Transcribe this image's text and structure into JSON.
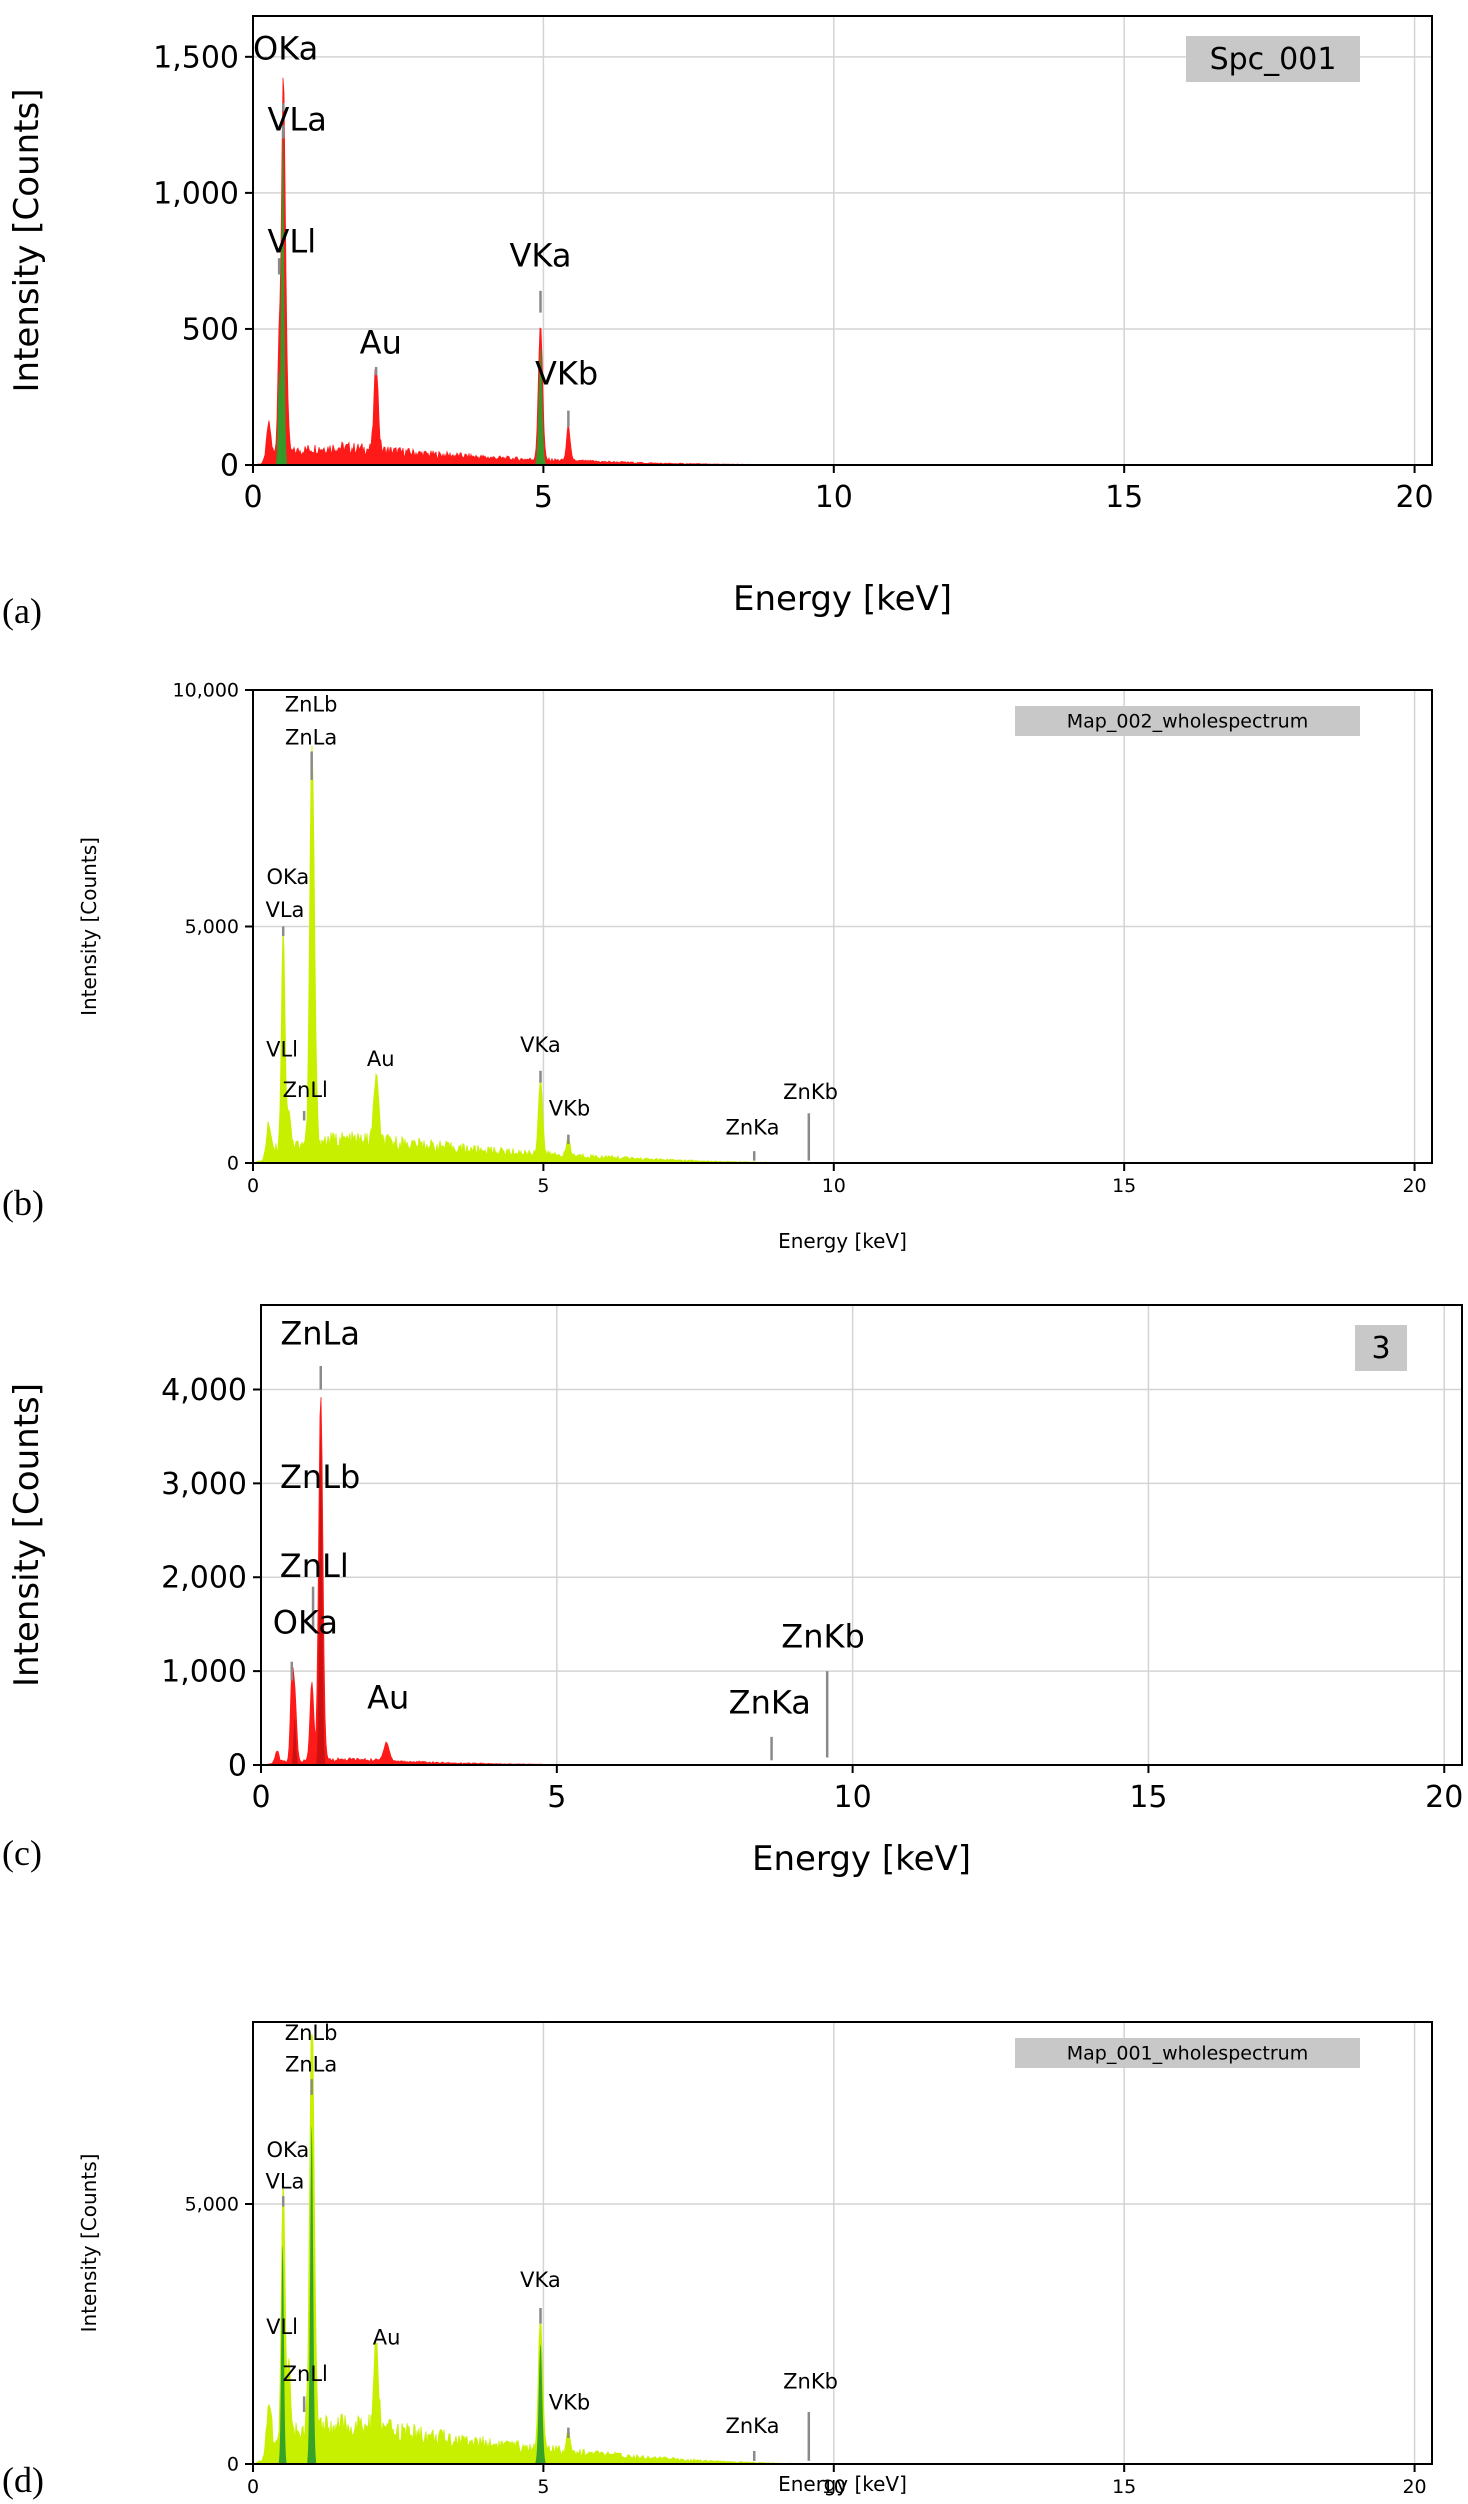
{
  "figure": {
    "panel_labels": [
      "(a)",
      "(b)",
      "(c)",
      "(d)"
    ]
  },
  "colors": {
    "red": "#ff1a1a",
    "red_overlay": "#cc1010",
    "lime": "#c6f000",
    "green_overlay": "#2e9e2a",
    "grid": "#d4d4d4",
    "axis": "#000000",
    "legend_bg": "#c8c8c8",
    "marker": "#8a8a8a"
  },
  "chart_data": [
    {
      "id": "a",
      "type": "area",
      "title": "",
      "xlabel": "Energy [keV]",
      "ylabel": "Intensity [Counts]",
      "xlim": [
        0,
        20.3
      ],
      "ylim": [
        0,
        1650
      ],
      "xticks": [
        0,
        5,
        10,
        15,
        20
      ],
      "yticks": [
        0,
        500,
        1000,
        1500
      ],
      "ytick_labels": [
        "0",
        "500",
        "1,000",
        "1,500"
      ],
      "grid": true,
      "legend": "Spc_001",
      "legend_position": "top-right",
      "fill": "red",
      "overlay": "green_overlay",
      "background": [
        [
          0,
          0
        ],
        [
          0.15,
          5
        ],
        [
          0.3,
          40
        ],
        [
          0.6,
          45
        ],
        [
          1.0,
          60
        ],
        [
          1.5,
          65
        ],
        [
          1.9,
          60
        ],
        [
          2.5,
          50
        ],
        [
          3.0,
          40
        ],
        [
          3.5,
          35
        ],
        [
          4.0,
          28
        ],
        [
          4.6,
          22
        ],
        [
          5.2,
          18
        ],
        [
          6.0,
          12
        ],
        [
          7.0,
          6
        ],
        [
          8.0,
          3
        ],
        [
          9.0,
          1
        ],
        [
          10.0,
          0
        ],
        [
          20.3,
          0
        ]
      ],
      "peaks": [
        [
          0.27,
          120,
          0.035
        ],
        [
          0.45,
          400,
          0.025
        ],
        [
          0.52,
          1300,
          0.03
        ],
        [
          0.57,
          300,
          0.03
        ],
        [
          2.12,
          320,
          0.035
        ],
        [
          4.95,
          500,
          0.035
        ],
        [
          5.43,
          130,
          0.03
        ]
      ],
      "overlay_peaks": [
        [
          0.45,
          350,
          0.02
        ],
        [
          0.51,
          1220,
          0.025
        ],
        [
          4.95,
          430,
          0.03
        ]
      ],
      "annotations": [
        {
          "text": "OKa",
          "x": 0.0,
          "y": 1490,
          "anchor": "start",
          "marker": 0.52,
          "marker_from": 1300,
          "marker_to": 1330
        },
        {
          "text": "VLa",
          "x": 0.25,
          "y": 1230,
          "anchor": "start",
          "marker": 0.52,
          "marker_from": 1200,
          "marker_to": 1250
        },
        {
          "text": "VLl",
          "x": 0.25,
          "y": 780,
          "anchor": "start",
          "marker": 0.45,
          "marker_from": 700,
          "marker_to": 760
        },
        {
          "text": "Au",
          "x": 2.2,
          "y": 410,
          "anchor": "middle",
          "marker": 2.12,
          "marker_from": 330,
          "marker_to": 360
        },
        {
          "text": "VKa",
          "x": 4.95,
          "y": 730,
          "anchor": "middle",
          "marker": 4.95,
          "marker_from": 560,
          "marker_to": 640
        },
        {
          "text": "VKb",
          "x": 5.4,
          "y": 295,
          "anchor": "middle",
          "marker": 5.43,
          "marker_from": 140,
          "marker_to": 200
        }
      ]
    },
    {
      "id": "b",
      "type": "area",
      "title": "",
      "xlabel": "Energy [keV]",
      "ylabel": "Intensity [Counts]",
      "xlim": [
        0,
        20.3
      ],
      "ylim": [
        0,
        10000
      ],
      "xticks": [
        0,
        5,
        10,
        15,
        20
      ],
      "yticks": [
        0,
        5000,
        10000
      ],
      "ytick_labels": [
        "0",
        "5,000",
        "10,000"
      ],
      "grid": true,
      "legend": "Map_002_wholespectrum",
      "legend_position": "top-right",
      "fill": "lime",
      "overlay": null,
      "background": [
        [
          0,
          0
        ],
        [
          0.15,
          50
        ],
        [
          0.3,
          300
        ],
        [
          0.6,
          350
        ],
        [
          1.0,
          450
        ],
        [
          1.5,
          500
        ],
        [
          2.0,
          480
        ],
        [
          2.5,
          430
        ],
        [
          3.0,
          380
        ],
        [
          3.5,
          320
        ],
        [
          4.0,
          270
        ],
        [
          4.6,
          220
        ],
        [
          5.2,
          180
        ],
        [
          6.0,
          130
        ],
        [
          7.0,
          70
        ],
        [
          8.0,
          30
        ],
        [
          9.0,
          10
        ],
        [
          10.0,
          0
        ],
        [
          20.3,
          0
        ]
      ],
      "peaks": [
        [
          0.27,
          600,
          0.035
        ],
        [
          0.52,
          4700,
          0.03
        ],
        [
          0.62,
          800,
          0.03
        ],
        [
          1.01,
          7800,
          0.035
        ],
        [
          1.06,
          2000,
          0.03
        ],
        [
          2.12,
          1400,
          0.04
        ],
        [
          4.95,
          1600,
          0.035
        ],
        [
          5.43,
          350,
          0.03
        ]
      ],
      "overlay_peaks": [],
      "annotations": [
        {
          "text": "ZnLb",
          "x": 1.0,
          "y": 9550,
          "anchor": "middle",
          "marker": null
        },
        {
          "text": "ZnLa",
          "x": 1.0,
          "y": 8850,
          "anchor": "middle",
          "marker": 1.01,
          "marker_from": 8100,
          "marker_to": 8700
        },
        {
          "text": "OKa",
          "x": 0.6,
          "y": 5900,
          "anchor": "middle",
          "marker": null
        },
        {
          "text": "VLa",
          "x": 0.55,
          "y": 5200,
          "anchor": "middle",
          "marker": 0.52,
          "marker_from": 4800,
          "marker_to": 5000
        },
        {
          "text": "VLl",
          "x": 0.5,
          "y": 2250,
          "anchor": "middle",
          "marker": null
        },
        {
          "text": "ZnLl",
          "x": 0.9,
          "y": 1400,
          "anchor": "middle",
          "marker": 0.88,
          "marker_from": 900,
          "marker_to": 1100
        },
        {
          "text": "Au",
          "x": 2.2,
          "y": 2050,
          "anchor": "middle",
          "marker": null
        },
        {
          "text": "VKa",
          "x": 4.95,
          "y": 2350,
          "anchor": "middle",
          "marker": 4.95,
          "marker_from": 1700,
          "marker_to": 1950
        },
        {
          "text": "VKb",
          "x": 5.45,
          "y": 1000,
          "anchor": "middle",
          "marker": 5.43,
          "marker_from": 400,
          "marker_to": 600
        },
        {
          "text": "ZnKa",
          "x": 8.6,
          "y": 600,
          "anchor": "middle",
          "marker": 8.63,
          "marker_from": 50,
          "marker_to": 250
        },
        {
          "text": "ZnKb",
          "x": 9.6,
          "y": 1350,
          "anchor": "middle",
          "marker": 9.57,
          "marker_from": 50,
          "marker_to": 1050
        }
      ]
    },
    {
      "id": "c",
      "type": "area",
      "title": "",
      "xlabel": "Energy [keV]",
      "ylabel": "Intensity [Counts]",
      "xlim": [
        0,
        20.3
      ],
      "ylim": [
        0,
        4900
      ],
      "xticks": [
        0,
        5,
        10,
        15,
        20
      ],
      "yticks": [
        0,
        1000,
        2000,
        3000,
        4000
      ],
      "ytick_labels": [
        "0",
        "1,000",
        "2,000",
        "3,000",
        "4,000"
      ],
      "grid": true,
      "legend": "3",
      "legend_position": "top-right",
      "fill": "red",
      "overlay": "red_overlay",
      "background": [
        [
          0,
          0
        ],
        [
          0.15,
          10
        ],
        [
          0.3,
          35
        ],
        [
          0.6,
          45
        ],
        [
          1.0,
          55
        ],
        [
          1.5,
          60
        ],
        [
          2.0,
          50
        ],
        [
          2.5,
          35
        ],
        [
          3.0,
          25
        ],
        [
          3.5,
          18
        ],
        [
          4.0,
          12
        ],
        [
          4.6,
          8
        ],
        [
          5.0,
          4
        ],
        [
          5.1,
          0
        ],
        [
          20.3,
          0
        ]
      ],
      "peaks": [
        [
          0.27,
          120,
          0.03
        ],
        [
          0.52,
          800,
          0.025
        ],
        [
          0.57,
          700,
          0.03
        ],
        [
          0.86,
          850,
          0.03
        ],
        [
          1.01,
          3900,
          0.035
        ],
        [
          2.12,
          200,
          0.045
        ]
      ],
      "overlay_peaks": [
        [
          0.57,
          500,
          0.02
        ],
        [
          1.01,
          3500,
          0.025
        ]
      ],
      "annotations": [
        {
          "text": "ZnLa",
          "x": 1.0,
          "y": 4480,
          "anchor": "middle",
          "marker": 1.01,
          "marker_from": 4000,
          "marker_to": 4250
        },
        {
          "text": "ZnLb",
          "x": 1.0,
          "y": 2950,
          "anchor": "middle",
          "marker": null
        },
        {
          "text": "ZnLl",
          "x": 0.9,
          "y": 2000,
          "anchor": "middle",
          "marker": 0.88,
          "marker_from": 1450,
          "marker_to": 1900
        },
        {
          "text": "OKa",
          "x": 0.75,
          "y": 1400,
          "anchor": "middle",
          "marker": 0.52,
          "marker_from": 900,
          "marker_to": 1100
        },
        {
          "text": "Au",
          "x": 2.15,
          "y": 600,
          "anchor": "middle",
          "marker": null
        },
        {
          "text": "ZnKa",
          "x": 8.6,
          "y": 550,
          "anchor": "middle",
          "marker": 8.63,
          "marker_from": 50,
          "marker_to": 300
        },
        {
          "text": "ZnKb",
          "x": 9.5,
          "y": 1250,
          "anchor": "middle",
          "marker": 9.57,
          "marker_from": 80,
          "marker_to": 1000
        }
      ]
    },
    {
      "id": "d",
      "type": "area",
      "title": "",
      "xlabel": "Energy [keV]",
      "ylabel": "Intensity [Counts]",
      "xlim": [
        0,
        20.3
      ],
      "ylim": [
        0,
        8500
      ],
      "xticks": [
        0,
        5,
        10,
        15,
        20
      ],
      "yticks": [
        0,
        5000
      ],
      "ytick_labels": [
        "0",
        "5,000"
      ],
      "grid": true,
      "legend": "Map_001_wholespectrum",
      "legend_position": "top-right",
      "fill": "lime",
      "overlay": "green_overlay",
      "background": [
        [
          0,
          0
        ],
        [
          0.15,
          60
        ],
        [
          0.3,
          500
        ],
        [
          0.6,
          550
        ],
        [
          1.0,
          700
        ],
        [
          1.5,
          720
        ],
        [
          2.0,
          700
        ],
        [
          2.5,
          620
        ],
        [
          3.0,
          540
        ],
        [
          3.5,
          470
        ],
        [
          4.0,
          400
        ],
        [
          4.6,
          330
        ],
        [
          5.2,
          270
        ],
        [
          6.0,
          190
        ],
        [
          7.0,
          110
        ],
        [
          8.0,
          50
        ],
        [
          9.0,
          15
        ],
        [
          10.0,
          0
        ],
        [
          20.3,
          0
        ]
      ],
      "peaks": [
        [
          0.27,
          700,
          0.035
        ],
        [
          0.52,
          4900,
          0.03
        ],
        [
          0.62,
          1300,
          0.03
        ],
        [
          1.01,
          7700,
          0.035
        ],
        [
          1.06,
          1500,
          0.03
        ],
        [
          2.12,
          1600,
          0.04
        ],
        [
          4.95,
          2600,
          0.035
        ],
        [
          5.43,
          450,
          0.03
        ]
      ],
      "overlay_peaks": [
        [
          0.51,
          4200,
          0.022
        ],
        [
          1.01,
          6500,
          0.025
        ],
        [
          4.95,
          2300,
          0.03
        ]
      ],
      "annotations": [
        {
          "text": "ZnLb",
          "x": 1.0,
          "y": 8150,
          "anchor": "middle",
          "marker": null
        },
        {
          "text": "ZnLa",
          "x": 1.0,
          "y": 7550,
          "anchor": "middle",
          "marker": 1.01,
          "marker_from": 7100,
          "marker_to": 7400
        },
        {
          "text": "OKa",
          "x": 0.6,
          "y": 5900,
          "anchor": "middle",
          "marker": null
        },
        {
          "text": "VLa",
          "x": 0.55,
          "y": 5300,
          "anchor": "middle",
          "marker": 0.52,
          "marker_from": 4950,
          "marker_to": 5150
        },
        {
          "text": "VLl",
          "x": 0.5,
          "y": 2500,
          "anchor": "middle",
          "marker": null
        },
        {
          "text": "ZnLl",
          "x": 0.9,
          "y": 1600,
          "anchor": "middle",
          "marker": 0.88,
          "marker_from": 1000,
          "marker_to": 1300
        },
        {
          "text": "Au",
          "x": 2.3,
          "y": 2300,
          "anchor": "middle",
          "marker": null
        },
        {
          "text": "VKa",
          "x": 4.95,
          "y": 3400,
          "anchor": "middle",
          "marker": 4.95,
          "marker_from": 2700,
          "marker_to": 3000
        },
        {
          "text": "VKb",
          "x": 5.45,
          "y": 1050,
          "anchor": "middle",
          "marker": 5.43,
          "marker_from": 500,
          "marker_to": 700
        },
        {
          "text": "ZnKa",
          "x": 8.6,
          "y": 600,
          "anchor": "middle",
          "marker": 8.63,
          "marker_from": 60,
          "marker_to": 250
        },
        {
          "text": "ZnKb",
          "x": 9.6,
          "y": 1450,
          "anchor": "middle",
          "marker": 9.57,
          "marker_from": 60,
          "marker_to": 1000
        }
      ]
    }
  ]
}
